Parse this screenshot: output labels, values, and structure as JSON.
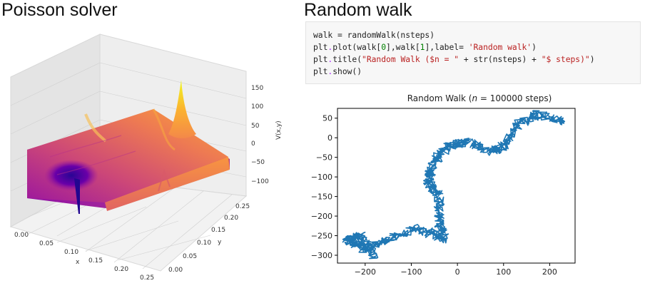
{
  "left_panel": {
    "title": "Poisson solver"
  },
  "right_panel": {
    "title": "Random walk"
  },
  "code_cell": {
    "lines": [
      [
        {
          "t": "walk = randomWalk(nsteps)",
          "c": ""
        }
      ],
      [
        {
          "t": "plt",
          "c": ""
        },
        {
          "t": ".",
          "c": "op"
        },
        {
          "t": "plot(walk[",
          "c": ""
        },
        {
          "t": "0",
          "c": "num"
        },
        {
          "t": "],walk[",
          "c": ""
        },
        {
          "t": "1",
          "c": "num"
        },
        {
          "t": "],label= ",
          "c": ""
        },
        {
          "t": "'Random walk'",
          "c": "str"
        },
        {
          "t": ")",
          "c": ""
        }
      ],
      [
        {
          "t": "plt",
          "c": ""
        },
        {
          "t": ".",
          "c": "op"
        },
        {
          "t": "title(",
          "c": ""
        },
        {
          "t": "\"Random Walk ($n = \"",
          "c": "str"
        },
        {
          "t": " + str(nsteps) + ",
          "c": ""
        },
        {
          "t": "\"$ steps)\"",
          "c": "str"
        },
        {
          "t": ")",
          "c": ""
        }
      ],
      [
        {
          "t": "plt",
          "c": ""
        },
        {
          "t": ".",
          "c": "op"
        },
        {
          "t": "show()",
          "c": ""
        }
      ]
    ]
  },
  "chart_data": [
    {
      "type": "surface3d",
      "title": "",
      "xlabel": "x",
      "ylabel": "y",
      "zlabel": "V(x,y)",
      "x_ticks": [
        "0.00",
        "0.05",
        "0.10",
        "0.15",
        "0.20",
        "0.25"
      ],
      "y_ticks": [
        "0.00",
        "0.05",
        "0.10",
        "0.15",
        "0.20",
        "0.25"
      ],
      "z_ticks": [
        "150",
        "100",
        "50",
        "0",
        "−50",
        "−100"
      ],
      "xlim": [
        0,
        0.25
      ],
      "ylim": [
        0,
        0.25
      ],
      "zlim": [
        -130,
        170
      ],
      "colormap": "plasma",
      "features": [
        {
          "type": "negative-spike",
          "x": 0.08,
          "y": 0.13,
          "z": -130
        },
        {
          "type": "positive-spike",
          "x": 0.17,
          "y": 0.2,
          "z": 170
        }
      ]
    },
    {
      "type": "line",
      "title_prefix": "Random Walk (",
      "title_var": "n",
      "title_suffix": " = 100000 steps)",
      "series": [
        {
          "color": "#1f77b4"
        }
      ],
      "xlim": [
        -260,
        255
      ],
      "ylim": [
        -320,
        75
      ],
      "x_ticks": [
        -200,
        -100,
        0,
        100,
        200
      ],
      "y_ticks": [
        50,
        0,
        -50,
        -100,
        -150,
        -200,
        -250,
        -300
      ],
      "x_tick_labels": [
        "−200",
        "−100",
        "0",
        "100",
        "200"
      ],
      "y_tick_labels": [
        "50",
        "0",
        "−50",
        "−100",
        "−150",
        "−200",
        "−250",
        "−300"
      ],
      "path_waypoints": [
        [
          230,
          40
        ],
        [
          175,
          60
        ],
        [
          130,
          35
        ],
        [
          100,
          -20
        ],
        [
          75,
          -35
        ],
        [
          20,
          -10
        ],
        [
          -20,
          -20
        ],
        [
          -50,
          -60
        ],
        [
          -65,
          -110
        ],
        [
          -40,
          -150
        ],
        [
          -40,
          -210
        ],
        [
          -30,
          -260
        ],
        [
          -85,
          -230
        ],
        [
          -150,
          -260
        ],
        [
          -200,
          -285
        ],
        [
          -240,
          -260
        ],
        [
          -210,
          -250
        ],
        [
          -180,
          -300
        ]
      ]
    }
  ]
}
